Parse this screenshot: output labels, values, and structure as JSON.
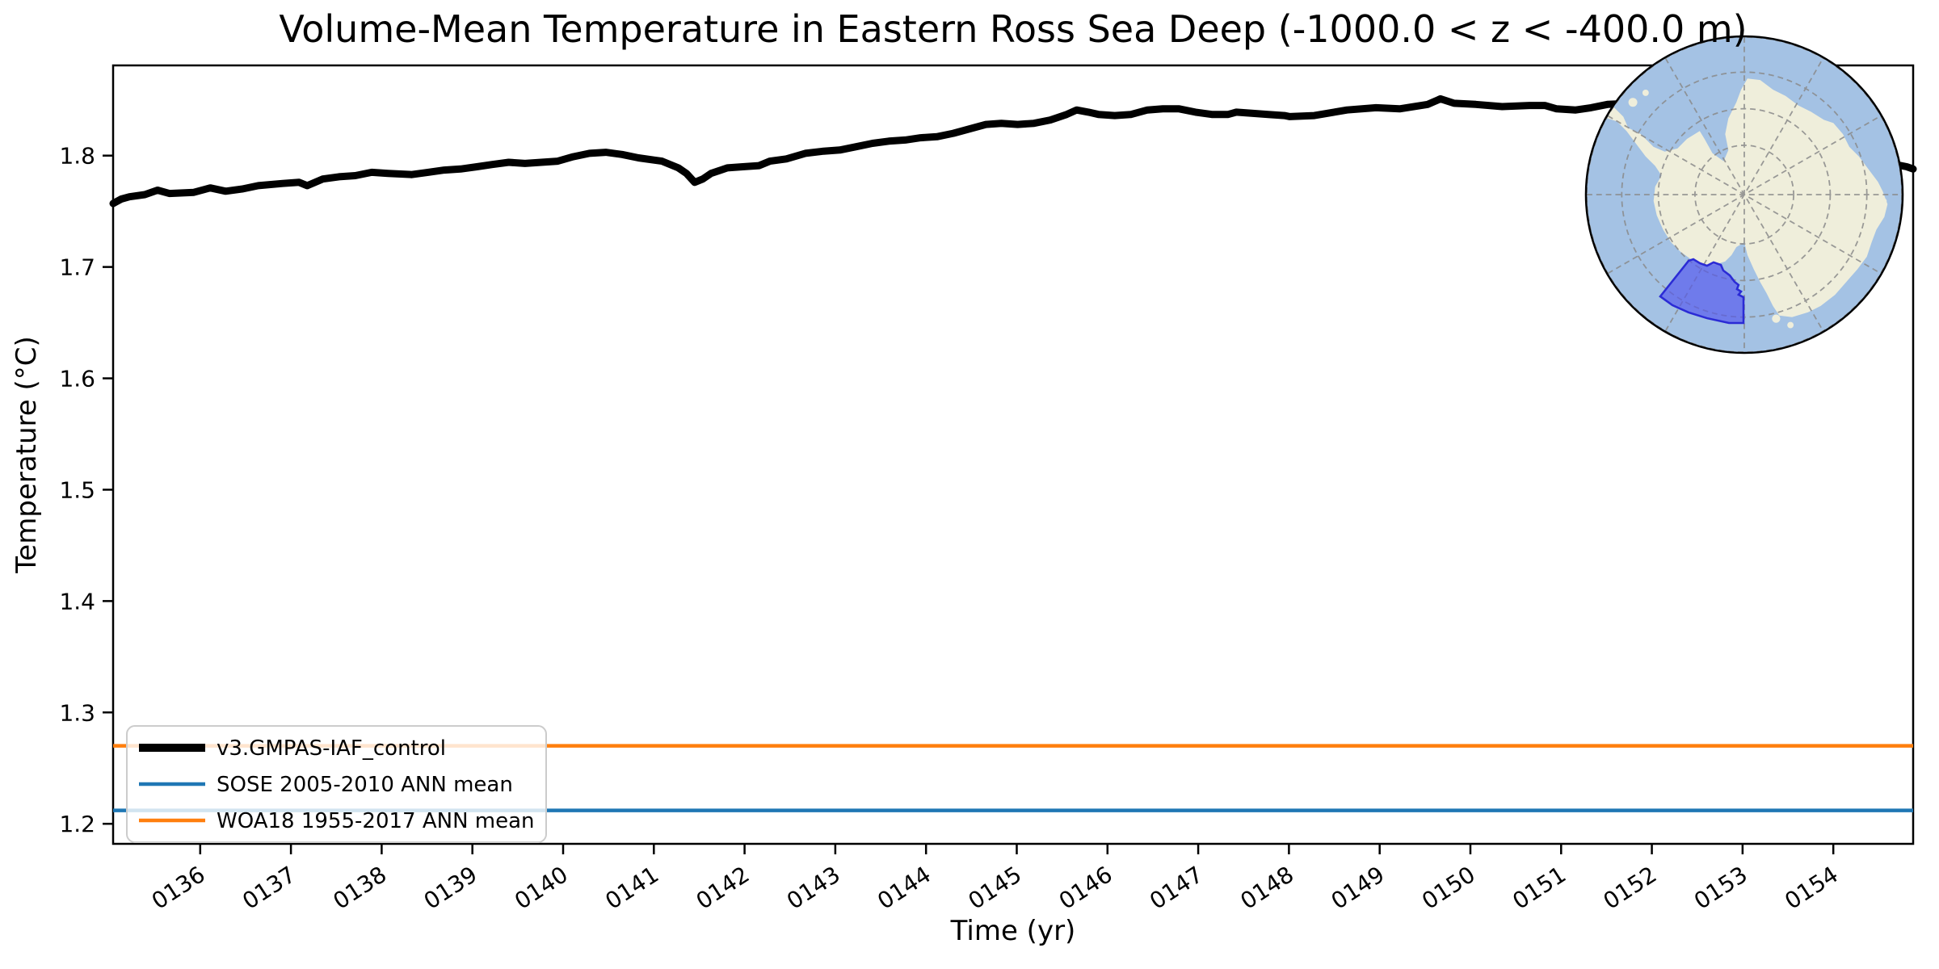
{
  "figure": {
    "background": "#ffffff"
  },
  "chart_data": {
    "type": "line",
    "title": "Volume-Mean Temperature in Eastern Ross Sea Deep (-1000.0 < z < -400.0 m)",
    "xlabel": "Time (yr)",
    "ylabel": "Temperature (°C)",
    "xlim": [
      135.04,
      154.88
    ],
    "ylim": [
      1.182,
      1.881
    ],
    "grid": false,
    "legend_position": "lower left",
    "x_tick_values": [
      136,
      137,
      138,
      139,
      140,
      141,
      142,
      143,
      144,
      145,
      146,
      147,
      148,
      149,
      150,
      151,
      152,
      153,
      154
    ],
    "x_tick_labels": [
      "0136",
      "0137",
      "0138",
      "0139",
      "0140",
      "0141",
      "0142",
      "0143",
      "0144",
      "0145",
      "0146",
      "0147",
      "0148",
      "0149",
      "0150",
      "0151",
      "0152",
      "0153",
      "0154"
    ],
    "y_tick_values": [
      1.2,
      1.3,
      1.4,
      1.5,
      1.6,
      1.7,
      1.8
    ],
    "y_tick_labels": [
      "1.2",
      "1.3",
      "1.4",
      "1.5",
      "1.6",
      "1.7",
      "1.8"
    ],
    "series": [
      {
        "name": "v3.GMPAS-IAF_control",
        "type": "line",
        "color": "#000000",
        "line_width": 9,
        "points": [
          [
            135.04,
            1.757
          ],
          [
            135.13,
            1.761
          ],
          [
            135.22,
            1.763
          ],
          [
            135.39,
            1.765
          ],
          [
            135.53,
            1.769
          ],
          [
            135.66,
            1.766
          ],
          [
            135.93,
            1.767
          ],
          [
            136.11,
            1.771
          ],
          [
            136.28,
            1.768
          ],
          [
            136.46,
            1.77
          ],
          [
            136.64,
            1.773
          ],
          [
            136.91,
            1.775
          ],
          [
            137.09,
            1.776
          ],
          [
            137.18,
            1.773
          ],
          [
            137.35,
            1.779
          ],
          [
            137.53,
            1.781
          ],
          [
            137.71,
            1.782
          ],
          [
            137.89,
            1.785
          ],
          [
            138.07,
            1.784
          ],
          [
            138.33,
            1.783
          ],
          [
            138.51,
            1.785
          ],
          [
            138.69,
            1.787
          ],
          [
            138.87,
            1.788
          ],
          [
            139.05,
            1.79
          ],
          [
            139.22,
            1.792
          ],
          [
            139.4,
            1.794
          ],
          [
            139.58,
            1.793
          ],
          [
            139.76,
            1.794
          ],
          [
            139.94,
            1.795
          ],
          [
            140.11,
            1.799
          ],
          [
            140.29,
            1.802
          ],
          [
            140.47,
            1.803
          ],
          [
            140.65,
            1.801
          ],
          [
            140.83,
            1.798
          ],
          [
            141.0,
            1.796
          ],
          [
            141.09,
            1.795
          ],
          [
            141.27,
            1.789
          ],
          [
            141.36,
            1.784
          ],
          [
            141.45,
            1.776
          ],
          [
            141.54,
            1.779
          ],
          [
            141.63,
            1.784
          ],
          [
            141.81,
            1.789
          ],
          [
            141.98,
            1.79
          ],
          [
            142.16,
            1.791
          ],
          [
            142.28,
            1.795
          ],
          [
            142.46,
            1.797
          ],
          [
            142.67,
            1.802
          ],
          [
            142.87,
            1.804
          ],
          [
            143.05,
            1.805
          ],
          [
            143.23,
            1.808
          ],
          [
            143.41,
            1.811
          ],
          [
            143.59,
            1.813
          ],
          [
            143.77,
            1.814
          ],
          [
            143.94,
            1.816
          ],
          [
            144.12,
            1.817
          ],
          [
            144.3,
            1.82
          ],
          [
            144.48,
            1.824
          ],
          [
            144.66,
            1.828
          ],
          [
            144.83,
            1.829
          ],
          [
            145.01,
            1.828
          ],
          [
            145.19,
            1.829
          ],
          [
            145.37,
            1.832
          ],
          [
            145.55,
            1.837
          ],
          [
            145.66,
            1.841
          ],
          [
            145.79,
            1.839
          ],
          [
            145.9,
            1.837
          ],
          [
            146.08,
            1.836
          ],
          [
            146.26,
            1.837
          ],
          [
            146.44,
            1.841
          ],
          [
            146.61,
            1.842
          ],
          [
            146.79,
            1.842
          ],
          [
            146.97,
            1.839
          ],
          [
            147.15,
            1.837
          ],
          [
            147.33,
            1.837
          ],
          [
            147.42,
            1.839
          ],
          [
            147.59,
            1.838
          ],
          [
            147.77,
            1.837
          ],
          [
            147.95,
            1.836
          ],
          [
            148.01,
            1.835
          ],
          [
            148.28,
            1.836
          ],
          [
            148.64,
            1.841
          ],
          [
            148.96,
            1.843
          ],
          [
            149.22,
            1.842
          ],
          [
            149.53,
            1.846
          ],
          [
            149.67,
            1.851
          ],
          [
            149.82,
            1.847
          ],
          [
            150.06,
            1.846
          ],
          [
            150.35,
            1.844
          ],
          [
            150.65,
            1.845
          ],
          [
            150.82,
            1.845
          ],
          [
            150.95,
            1.842
          ],
          [
            151.16,
            1.841
          ],
          [
            151.33,
            1.843
          ],
          [
            151.51,
            1.846
          ],
          [
            151.8,
            1.847
          ],
          [
            152.1,
            1.845
          ],
          [
            152.4,
            1.843
          ],
          [
            152.7,
            1.839
          ],
          [
            153.0,
            1.834
          ],
          [
            153.3,
            1.828
          ],
          [
            153.6,
            1.82
          ],
          [
            153.9,
            1.811
          ],
          [
            154.2,
            1.802
          ],
          [
            154.5,
            1.795
          ],
          [
            154.81,
            1.79
          ],
          [
            154.88,
            1.788
          ]
        ]
      },
      {
        "name": "SOSE 2005-2010 ANN mean",
        "type": "hline",
        "color": "#1f77b4",
        "line_width": 4.5,
        "value": 1.212
      },
      {
        "name": "WOA18 1955-2017 ANN mean",
        "type": "hline",
        "color": "#ff7f0e",
        "line_width": 4.5,
        "value": 1.27
      }
    ]
  },
  "legend": {
    "border_color": "#cccccc",
    "background": "rgba(255,255,255,0.8)"
  },
  "map_inset": {
    "projection": "south-polar-stereographic",
    "highlighted_region": "Eastern Ross Sea",
    "colors": {
      "ocean": "#a4c2e4",
      "land": "#efeedb",
      "region_fill": "#5356ee",
      "region_edge": "#2b2bd5",
      "graticule": "#8a8a8a",
      "border": "#000000"
    }
  }
}
